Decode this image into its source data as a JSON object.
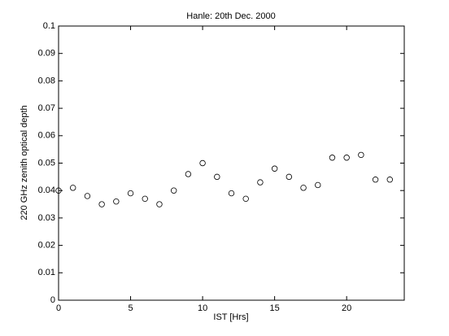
{
  "chart_data": {
    "type": "scatter",
    "title": "Hanle: 20th Dec. 2000",
    "x_label": "IST [Hrs]",
    "y_label": "220 GHz zenith optical depth",
    "series": [
      {
        "color": "#000000",
        "x": [
          0,
          1,
          2,
          3,
          4,
          5,
          6,
          7,
          8,
          9,
          10,
          11,
          12,
          13,
          14,
          15,
          16,
          17,
          18,
          19,
          20,
          21,
          22,
          23
        ],
        "values": [
          0.04,
          0.041,
          0.038,
          0.035,
          0.036,
          0.039,
          0.037,
          0.035,
          0.04,
          0.046,
          0.05,
          0.045,
          0.039,
          0.037,
          0.043,
          0.048,
          0.045,
          0.041,
          0.042,
          0.052,
          0.052,
          0.053,
          0.044,
          0.044
        ]
      }
    ],
    "xlim": [
      0,
      24
    ],
    "xticks": [
      0,
      5,
      10,
      15,
      20
    ],
    "ylim": [
      0,
      0.1
    ],
    "yticks": [
      0,
      0.01,
      0.02,
      0.03,
      0.04,
      0.05,
      0.06,
      0.07,
      0.08,
      0.09,
      0.1
    ],
    "grid": false
  }
}
